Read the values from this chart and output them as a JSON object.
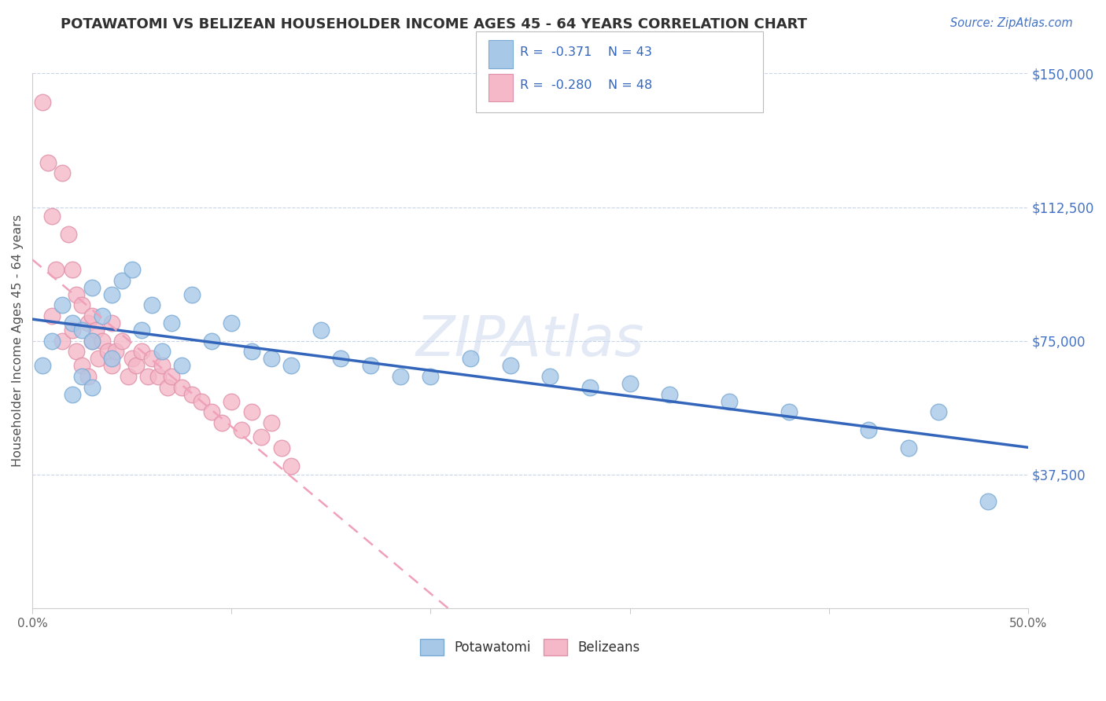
{
  "title": "POTAWATOMI VS BELIZEAN HOUSEHOLDER INCOME AGES 45 - 64 YEARS CORRELATION CHART",
  "source": "Source: ZipAtlas.com",
  "ylabel": "Householder Income Ages 45 - 64 years",
  "xmin": 0.0,
  "xmax": 0.5,
  "ymin": 0,
  "ymax": 150000,
  "yticks": [
    37500,
    75000,
    112500,
    150000
  ],
  "ytick_labels": [
    "$37,500",
    "$75,000",
    "$112,500",
    "$150,000"
  ],
  "xticks": [
    0.0,
    0.1,
    0.2,
    0.3,
    0.4,
    0.5
  ],
  "xtick_labels": [
    "0.0%",
    "",
    "",
    "",
    "",
    "50.0%"
  ],
  "legend_r1": "R =  -0.371",
  "legend_n1": "N = 43",
  "legend_r2": "R =  -0.280",
  "legend_n2": "N = 48",
  "color_potawatomi": "#a8c8e8",
  "color_belizean": "#f4b8c8",
  "edge_potawatomi": "#7aaad4",
  "edge_belizean": "#e090a8",
  "line_color_potawatomi": "#3366bb",
  "line_color_belizean": "#f0a0b8",
  "background_color": "#ffffff",
  "grid_color": "#c8d4e8",
  "title_color": "#303030",
  "source_color": "#4472c4",
  "axis_label_color": "#505050",
  "tick_color_y": "#4472c4",
  "tick_color_x": "#606060",
  "potawatomi_x": [
    0.005,
    0.01,
    0.015,
    0.02,
    0.02,
    0.025,
    0.025,
    0.03,
    0.03,
    0.03,
    0.035,
    0.04,
    0.04,
    0.045,
    0.05,
    0.055,
    0.06,
    0.065,
    0.07,
    0.075,
    0.08,
    0.09,
    0.1,
    0.11,
    0.12,
    0.13,
    0.145,
    0.155,
    0.17,
    0.185,
    0.2,
    0.22,
    0.24,
    0.26,
    0.28,
    0.3,
    0.32,
    0.35,
    0.38,
    0.42,
    0.44,
    0.455,
    0.48
  ],
  "potawatomi_y": [
    68000,
    75000,
    85000,
    80000,
    60000,
    78000,
    65000,
    90000,
    75000,
    62000,
    82000,
    88000,
    70000,
    92000,
    95000,
    78000,
    85000,
    72000,
    80000,
    68000,
    88000,
    75000,
    80000,
    72000,
    70000,
    68000,
    78000,
    70000,
    68000,
    65000,
    65000,
    70000,
    68000,
    65000,
    62000,
    63000,
    60000,
    58000,
    55000,
    50000,
    45000,
    55000,
    30000
  ],
  "belizean_x": [
    0.005,
    0.008,
    0.01,
    0.01,
    0.012,
    0.015,
    0.015,
    0.018,
    0.02,
    0.02,
    0.022,
    0.022,
    0.025,
    0.025,
    0.028,
    0.028,
    0.03,
    0.03,
    0.032,
    0.033,
    0.035,
    0.038,
    0.04,
    0.04,
    0.042,
    0.045,
    0.048,
    0.05,
    0.052,
    0.055,
    0.058,
    0.06,
    0.063,
    0.065,
    0.068,
    0.07,
    0.075,
    0.08,
    0.085,
    0.09,
    0.095,
    0.1,
    0.105,
    0.11,
    0.115,
    0.12,
    0.125,
    0.13
  ],
  "belizean_y": [
    142000,
    125000,
    110000,
    82000,
    95000,
    122000,
    75000,
    105000,
    95000,
    78000,
    88000,
    72000,
    85000,
    68000,
    80000,
    65000,
    82000,
    75000,
    78000,
    70000,
    75000,
    72000,
    80000,
    68000,
    72000,
    75000,
    65000,
    70000,
    68000,
    72000,
    65000,
    70000,
    65000,
    68000,
    62000,
    65000,
    62000,
    60000,
    58000,
    55000,
    52000,
    58000,
    50000,
    55000,
    48000,
    52000,
    45000,
    40000
  ]
}
